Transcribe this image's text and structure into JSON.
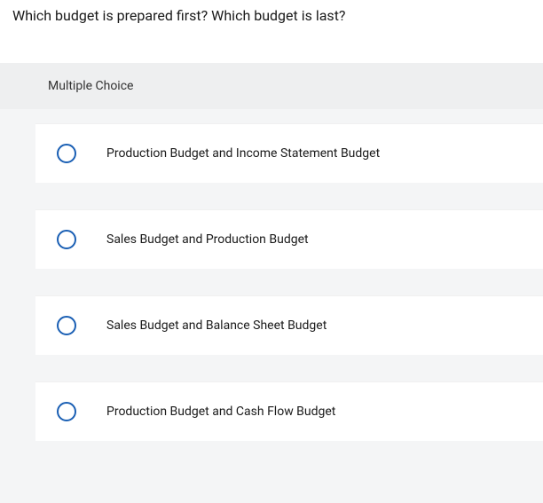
{
  "question_text": "Which budget is prepared first? Which budget is last?",
  "section_label": "Multiple Choice",
  "options": [
    {
      "label": "Production Budget and Income Statement Budget"
    },
    {
      "label": "Sales Budget and Production Budget"
    },
    {
      "label": "Sales Budget and Balance Sheet Budget"
    },
    {
      "label": "Production Budget and Cash Flow Budget"
    }
  ],
  "colors": {
    "radio_border": "#1a5fb4",
    "page_bg": "#ffffff",
    "panel_bg": "#f4f5f6",
    "header_bg": "#eeeff0",
    "text": "#1a1a1a"
  }
}
